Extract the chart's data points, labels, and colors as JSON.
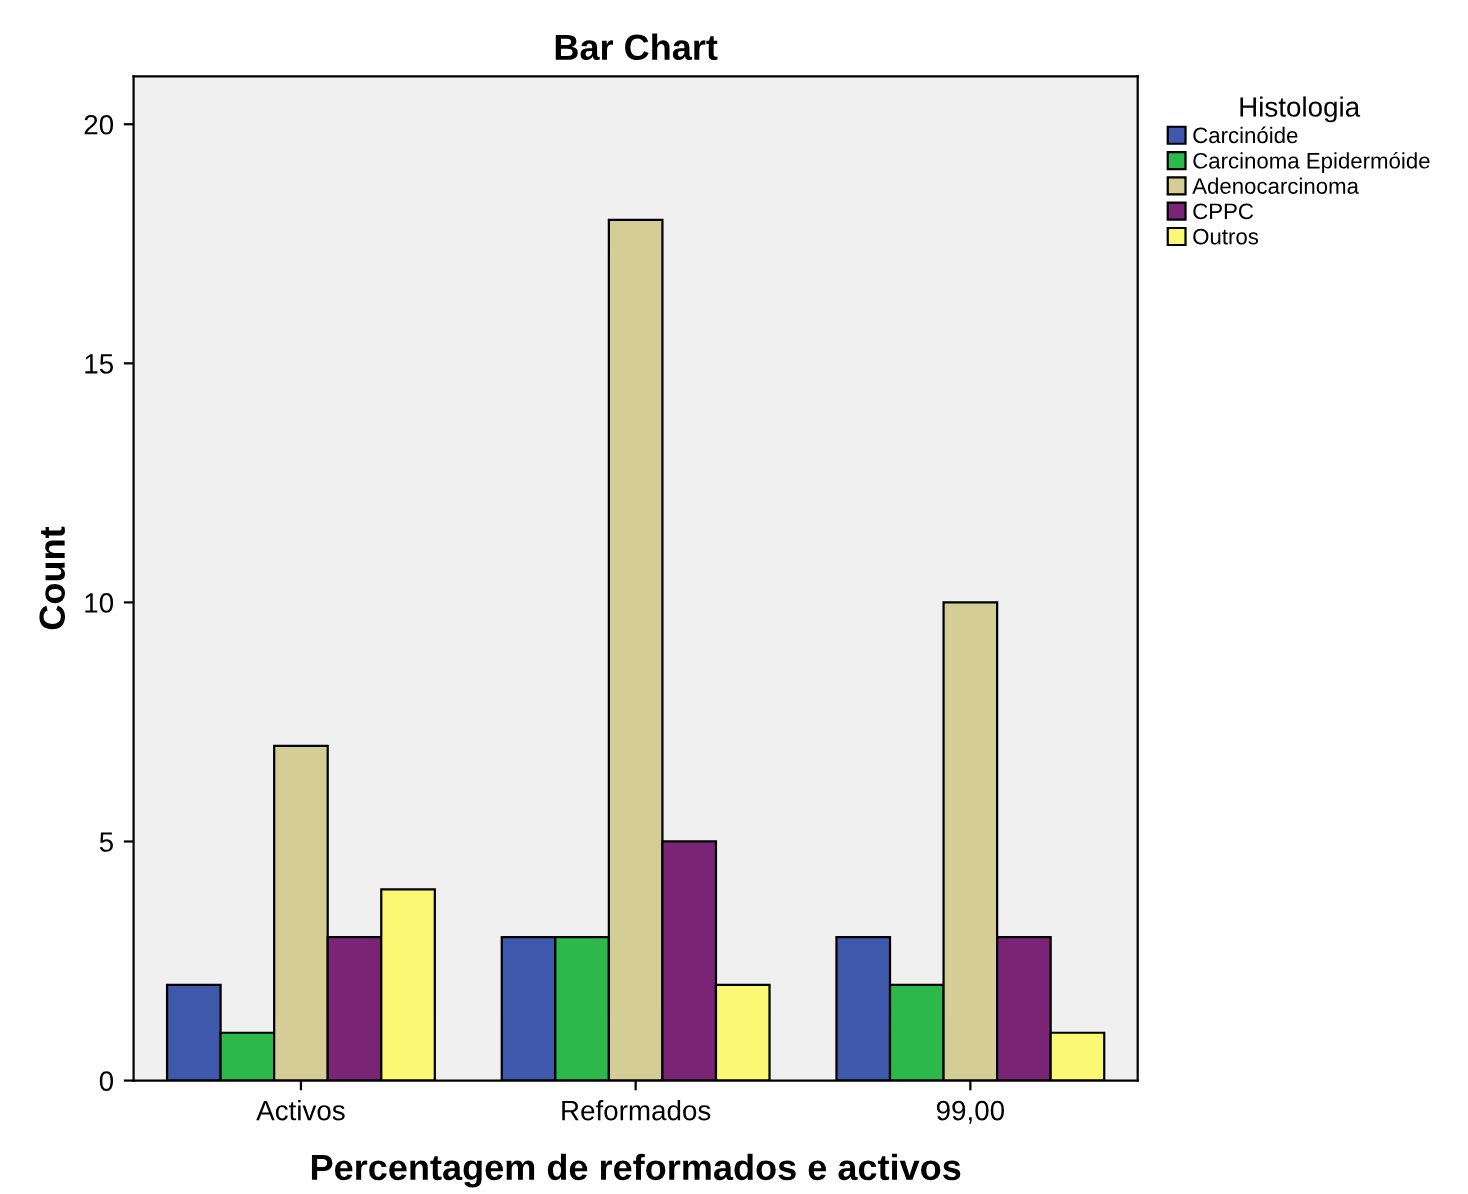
{
  "chart_data": {
    "type": "bar",
    "title": "Bar Chart",
    "xlabel": "Percentagem de reformados e activos",
    "ylabel": "Count",
    "legend_title": "Histologia",
    "categories": [
      "Activos",
      "Reformados",
      "99,00"
    ],
    "series": [
      {
        "name": "Carcinóide",
        "color": "#3e58ac",
        "values": [
          2,
          3,
          3
        ]
      },
      {
        "name": "Carcinoma Epidermóide",
        "color": "#2db84b",
        "values": [
          1,
          3,
          2
        ]
      },
      {
        "name": "Adenocarcinoma",
        "color": "#d4cd96",
        "values": [
          7,
          18,
          10
        ]
      },
      {
        "name": "CPPC",
        "color": "#7a2476",
        "values": [
          3,
          5,
          3
        ]
      },
      {
        "name": "Outros",
        "color": "#fbf873",
        "values": [
          4,
          2,
          1
        ]
      }
    ],
    "ylim": [
      0,
      21
    ],
    "yticks": [
      0,
      5,
      10,
      15,
      20
    ],
    "grid": false,
    "legend": "top right"
  }
}
